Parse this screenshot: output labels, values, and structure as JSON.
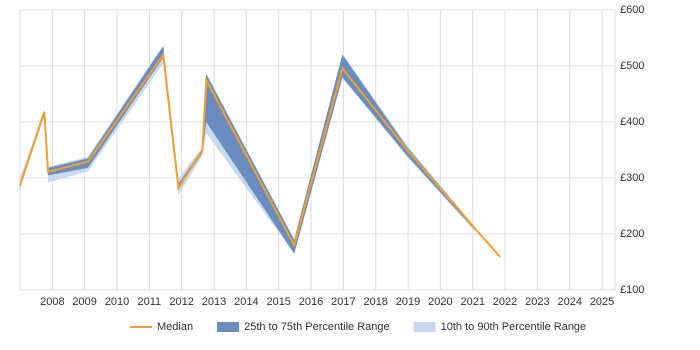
{
  "chart_data": {
    "type": "band-line",
    "x": [
      2007.0,
      2007.75,
      2007.87,
      2009.1,
      2011.43,
      2011.9,
      2012.64,
      2012.76,
      2015.48,
      2016.97,
      2018.97,
      2021.05,
      2021.85
    ],
    "median": {
      "name": "Median",
      "color": "#f0a030",
      "values": [
        287,
        418,
        311,
        329,
        520,
        282,
        350,
        475,
        180,
        496,
        350,
        211,
        159
      ]
    },
    "bands": [
      {
        "name": "10th to 90th Percentile Range",
        "color": "#c6d9ee",
        "low": [
          280,
          410,
          292,
          312,
          505,
          270,
          340,
          380,
          165,
          478,
          338,
          206,
          null
        ],
        "high": [
          300,
          422,
          320,
          338,
          538,
          300,
          355,
          488,
          190,
          522,
          358,
          214,
          null
        ]
      },
      {
        "name": "25th to 75th Percentile Range",
        "color": "#6a8cbf",
        "low": [
          283,
          415,
          305,
          318,
          515,
          280,
          345,
          400,
          165,
          480,
          340,
          208,
          null
        ],
        "high": [
          292,
          420,
          318,
          335,
          535,
          290,
          352,
          485,
          190,
          520,
          355,
          213,
          null
        ]
      }
    ],
    "legend_order": [
      0,
      1
    ],
    "xlim": [
      2007.0,
      2025.4
    ],
    "xticks": [
      2008,
      2009,
      2010,
      2011,
      2012,
      2013,
      2014,
      2015,
      2016,
      2017,
      2018,
      2019,
      2020,
      2021,
      2022,
      2023,
      2024,
      2025
    ],
    "ylim": [
      100,
      600
    ],
    "yticks": [
      {
        "value": 100,
        "label": "£100"
      },
      {
        "value": 200,
        "label": "£200"
      },
      {
        "value": 300,
        "label": "£300"
      },
      {
        "value": 400,
        "label": "£400"
      },
      {
        "value": 500,
        "label": "£500"
      },
      {
        "value": 600,
        "label": "£600"
      }
    ],
    "grid": true
  }
}
